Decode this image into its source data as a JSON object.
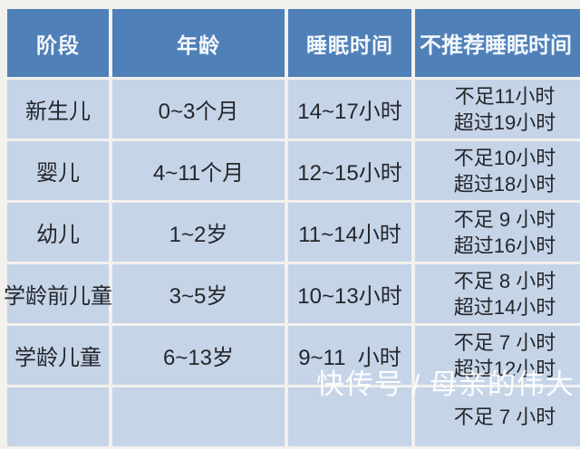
{
  "chart_data": {
    "type": "table",
    "title": "",
    "columns": [
      "阶段",
      "年龄",
      "睡眠时间",
      "不推荐睡眠时间"
    ],
    "rows": [
      {
        "stage": "新生儿",
        "age": "0~3个月",
        "sleep": "14~17小时",
        "avoid_line1": "不足11小时",
        "avoid_line2": "超过19小时"
      },
      {
        "stage": "婴儿",
        "age": "4~11个月",
        "sleep": "12~15小时",
        "avoid_line1": "不足10小时",
        "avoid_line2": "超过18小时"
      },
      {
        "stage": "幼儿",
        "age": "1~2岁",
        "sleep": "11~14小时",
        "avoid_line1": "不足 9 小时",
        "avoid_line2": "超过16小时"
      },
      {
        "stage": "学龄前儿童",
        "age": "3~5岁",
        "sleep": "10~13小时",
        "avoid_line1": "不足 8 小时",
        "avoid_line2": "超过14小时"
      },
      {
        "stage": "学龄儿童",
        "age": "6~13岁",
        "sleep": "9~11  小时",
        "avoid_line1": "不足 7 小时",
        "avoid_line2": "超过12小时"
      },
      {
        "stage": "",
        "age": "",
        "sleep": "",
        "avoid_line1": "不足 7 小时",
        "avoid_line2": ""
      }
    ],
    "legend": "none",
    "grid": "whitish 4px separators between cells"
  },
  "watermark": {
    "text": "快传号 / 母亲的伟大"
  },
  "colors": {
    "header_bg": "#4f80b8",
    "header_text": "#f3f7fc",
    "row_bg": "#c6d4e8",
    "row_text": "#24262a",
    "page_bg": "#f3f1ee",
    "watermark_text": "#ffffff"
  }
}
